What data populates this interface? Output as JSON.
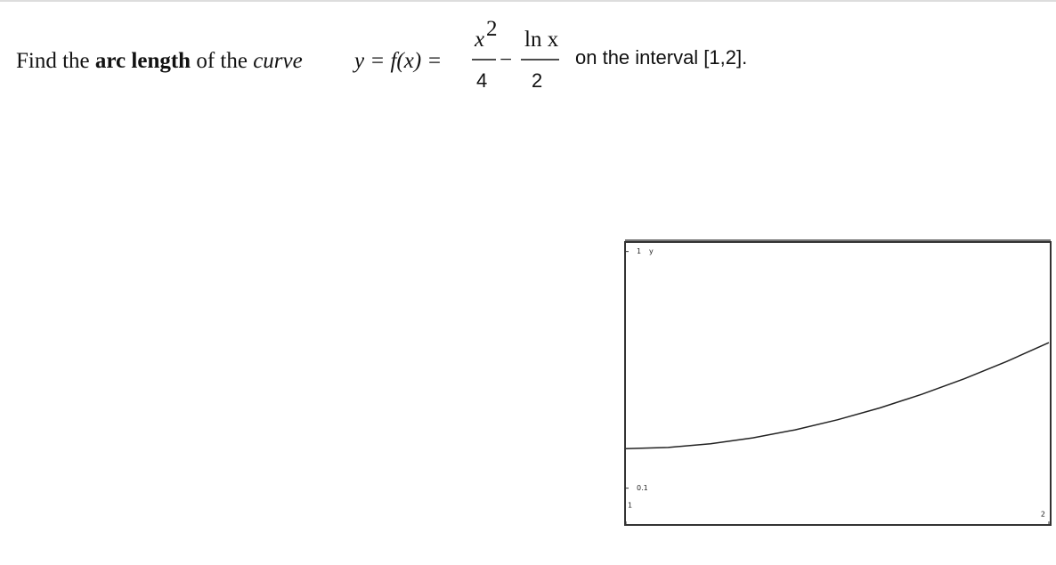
{
  "question": {
    "intro": "Find the",
    "bold": "arc length",
    "mid": "of the",
    "italic": "curve",
    "equation": "y = f(x) =",
    "num1": "x",
    "exp1": "2",
    "den1": "4",
    "minus": "−",
    "num2": "ln x",
    "den2": "2",
    "outro": "on the interval [1,2]."
  },
  "chart_data": {
    "type": "line",
    "ylabel": "y",
    "color": "#222222",
    "x": [
      1.0,
      1.1,
      1.2,
      1.3,
      1.4,
      1.5,
      1.6,
      1.7,
      1.8,
      1.9,
      2.0
    ],
    "values": [
      0.25,
      0.2548,
      0.2688,
      0.2913,
      0.3218,
      0.3598,
      0.405,
      0.4572,
      0.5161,
      0.5816,
      0.6534
    ],
    "xlim": [
      1,
      2
    ],
    "ylim": [
      -0.04,
      1.036
    ],
    "xticks": [
      1,
      2
    ],
    "yticks": [
      0.1,
      1
    ]
  }
}
